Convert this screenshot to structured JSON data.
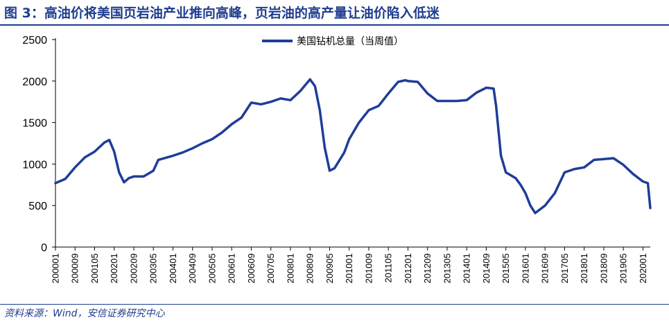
{
  "figure": {
    "title": "图 3：高油价将美国页岩油产业推向高峰，页岩油的高产量让油价陷入低迷",
    "source": "资料来源：Wind，安信证券研究中心"
  },
  "chart_data": {
    "type": "line",
    "legend": "top-center",
    "ylim": [
      0,
      2500
    ],
    "yticks": [
      0,
      500,
      1000,
      1500,
      2000,
      2500
    ],
    "grid": false,
    "xticks": [
      "200001",
      "200009",
      "200105",
      "200201",
      "200209",
      "200305",
      "200401",
      "200409",
      "200505",
      "200601",
      "200609",
      "200705",
      "200801",
      "200809",
      "200905",
      "201001",
      "201009",
      "201105",
      "201201",
      "201209",
      "201305",
      "201401",
      "201409",
      "201505",
      "201601",
      "201609",
      "201705",
      "201801",
      "201809",
      "201905",
      "202001"
    ],
    "series": [
      {
        "name": "美国钻机总量（当周值）",
        "color": "#1f3d99",
        "points": [
          [
            "200001",
            770
          ],
          [
            "200005",
            820
          ],
          [
            "200009",
            960
          ],
          [
            "200101",
            1080
          ],
          [
            "200105",
            1150
          ],
          [
            "200109",
            1260
          ],
          [
            "200111",
            1290
          ],
          [
            "200201",
            1150
          ],
          [
            "200203",
            900
          ],
          [
            "200205",
            780
          ],
          [
            "200207",
            830
          ],
          [
            "200209",
            850
          ],
          [
            "200301",
            850
          ],
          [
            "200305",
            920
          ],
          [
            "200307",
            1050
          ],
          [
            "200401",
            1100
          ],
          [
            "200405",
            1140
          ],
          [
            "200409",
            1190
          ],
          [
            "200501",
            1250
          ],
          [
            "200505",
            1300
          ],
          [
            "200509",
            1380
          ],
          [
            "200601",
            1480
          ],
          [
            "200605",
            1560
          ],
          [
            "200609",
            1740
          ],
          [
            "200701",
            1720
          ],
          [
            "200705",
            1750
          ],
          [
            "200709",
            1790
          ],
          [
            "200801",
            1770
          ],
          [
            "200805",
            1880
          ],
          [
            "200809",
            2020
          ],
          [
            "200811",
            1940
          ],
          [
            "200901",
            1650
          ],
          [
            "200903",
            1200
          ],
          [
            "200905",
            920
          ],
          [
            "200907",
            950
          ],
          [
            "200911",
            1140
          ],
          [
            "201001",
            1300
          ],
          [
            "201005",
            1500
          ],
          [
            "201009",
            1650
          ],
          [
            "201101",
            1700
          ],
          [
            "201105",
            1850
          ],
          [
            "201109",
            1990
          ],
          [
            "201112",
            2010
          ],
          [
            "201201",
            2000
          ],
          [
            "201205",
            1990
          ],
          [
            "201209",
            1850
          ],
          [
            "201301",
            1760
          ],
          [
            "201305",
            1760
          ],
          [
            "201309",
            1760
          ],
          [
            "201401",
            1770
          ],
          [
            "201405",
            1860
          ],
          [
            "201409",
            1920
          ],
          [
            "201412",
            1910
          ],
          [
            "201501",
            1700
          ],
          [
            "201503",
            1100
          ],
          [
            "201505",
            900
          ],
          [
            "201509",
            830
          ],
          [
            "201511",
            750
          ],
          [
            "201601",
            650
          ],
          [
            "201603",
            500
          ],
          [
            "201605",
            410
          ],
          [
            "201609",
            500
          ],
          [
            "201701",
            650
          ],
          [
            "201705",
            900
          ],
          [
            "201709",
            940
          ],
          [
            "201801",
            960
          ],
          [
            "201805",
            1050
          ],
          [
            "201809",
            1060
          ],
          [
            "201901",
            1070
          ],
          [
            "201905",
            990
          ],
          [
            "201909",
            880
          ],
          [
            "202001",
            790
          ],
          [
            "202003",
            770
          ],
          [
            "202004",
            470
          ]
        ]
      }
    ]
  }
}
